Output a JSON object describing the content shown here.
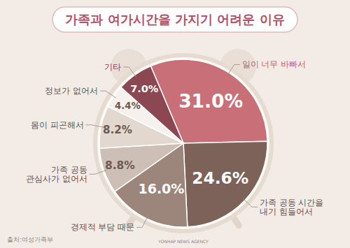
{
  "chart_data": {
    "type": "pie",
    "title": "가족과 여가시간을 가지기 어려운 이유",
    "categories": [
      "일이 너무 바빠서",
      "가족 공동 시간을\n내기 힘들어서",
      "경제적 부담 때문",
      "가족 공동\n관심사가 없어서",
      "몸이 피곤해서",
      "정보가 없어서",
      "기타"
    ],
    "values": [
      31.0,
      24.6,
      16.0,
      8.8,
      8.2,
      4.4,
      7.0
    ],
    "value_labels": [
      "31.0%",
      "24.6%",
      "16.0%",
      "8.8%",
      "8.2%",
      "4.4%",
      "7.0%"
    ],
    "colors": [
      "#c96f78",
      "#7c6259",
      "#9c857b",
      "#cdbfb5",
      "#e2d8cf",
      "#f6f1ec",
      "#8b4752"
    ],
    "data_labels": true,
    "source": "출처:여성가족부",
    "annotations": [
      "YONHAP NEWS AGENCY"
    ]
  }
}
